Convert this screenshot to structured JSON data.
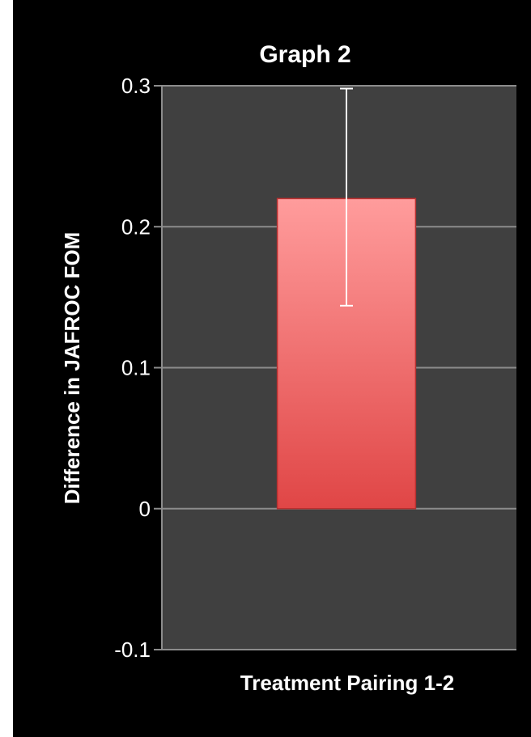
{
  "chart_data": {
    "type": "bar",
    "title": "Graph 2",
    "xlabel": "",
    "ylabel": "Difference in JAFROC FOM",
    "categories": [
      "Treatment Pairing 1-2"
    ],
    "series": [
      {
        "values": [
          0.22
        ],
        "error_low": [
          0.144
        ],
        "error_high": [
          0.298
        ]
      }
    ],
    "ylim": [
      -0.1,
      0.3
    ],
    "yticks": [
      -0.1,
      0,
      0.1,
      0.2,
      0.3
    ],
    "ytick_labels": [
      "-0.1",
      "0",
      "0.1",
      "0.2",
      "0.3"
    ],
    "grid": true,
    "colors": {
      "background": "#000000",
      "plot_area": "#404040",
      "gridline": "#8c8c8c",
      "bar_top": "#ff9c9c",
      "bar_bottom": "#e04646",
      "error_bar": "#ffffff",
      "text": "#ffffff"
    }
  }
}
